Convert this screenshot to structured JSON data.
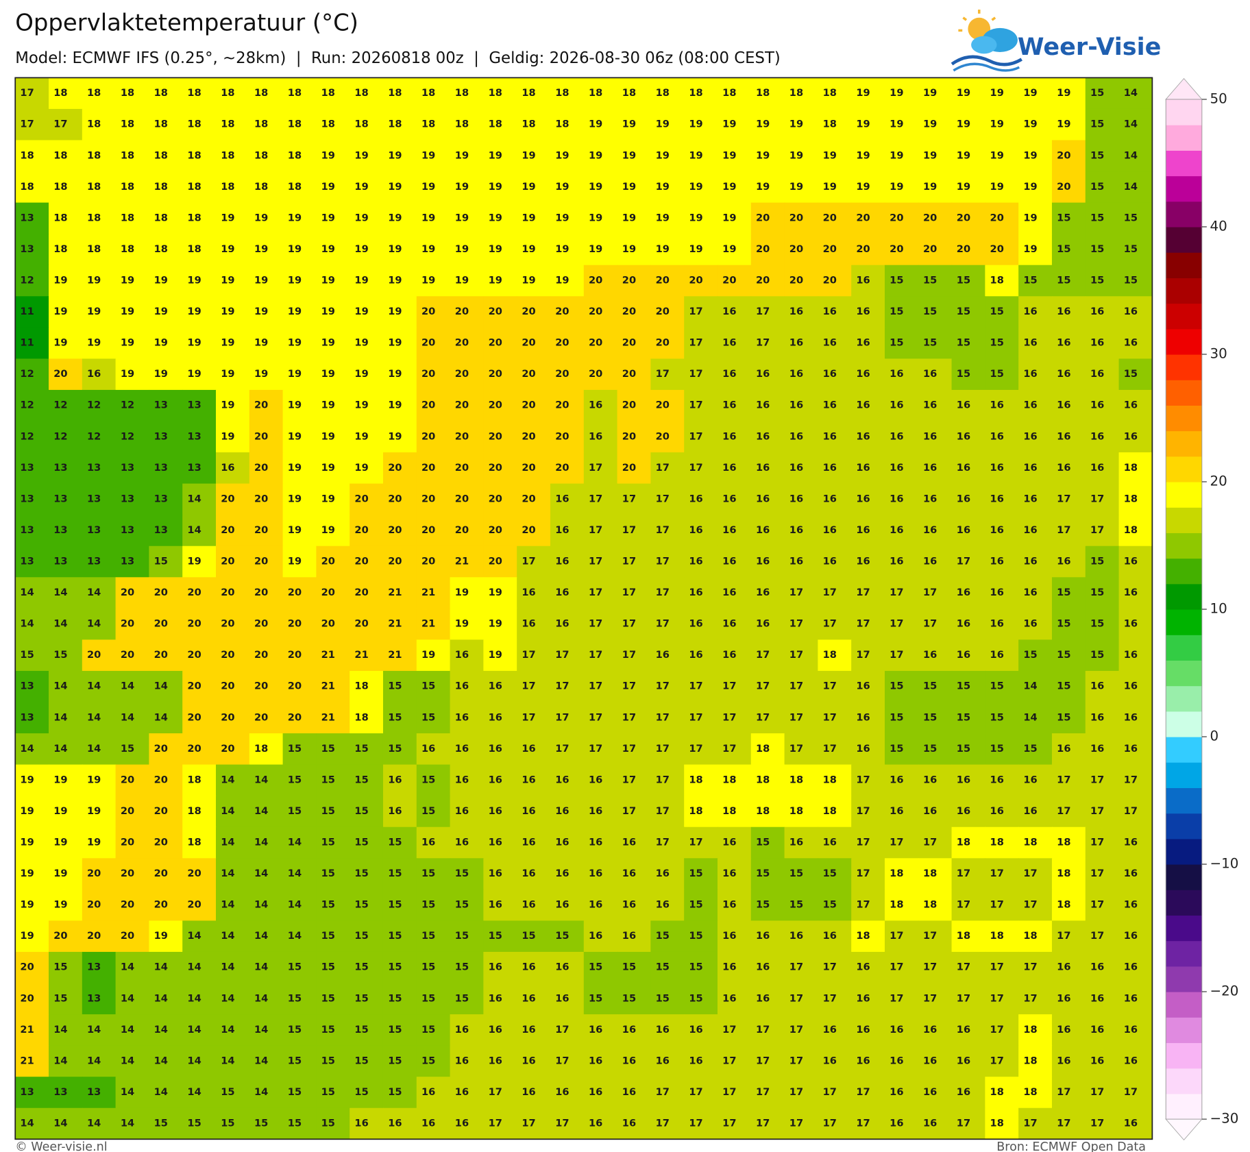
{
  "header": {
    "title": "Oppervlaktetemperatuur (°C)",
    "subtitle": "Model: ECMWF IFS (0.25°, ~28km)  |  Run: 20260818 00z  |  Geldig: 2026-08-30 06z (08:00 CEST)",
    "logo": "Weer-Visie"
  },
  "map": {
    "type": "grid",
    "rows": [
      [
        17,
        18,
        18,
        18,
        18,
        18,
        18,
        18,
        18,
        18,
        18,
        18,
        18,
        18,
        18,
        18,
        18,
        18,
        18,
        18,
        18,
        18,
        18,
        18,
        18,
        19,
        19,
        19,
        19,
        19,
        19,
        19,
        15,
        14
      ],
      [
        17,
        17,
        18,
        18,
        18,
        18,
        18,
        18,
        18,
        18,
        18,
        18,
        18,
        18,
        18,
        18,
        18,
        19,
        19,
        19,
        19,
        19,
        19,
        19,
        18,
        19,
        19,
        19,
        19,
        19,
        19,
        19,
        15,
        14
      ],
      [
        18,
        18,
        18,
        18,
        18,
        18,
        18,
        18,
        18,
        19,
        19,
        19,
        19,
        19,
        19,
        19,
        19,
        19,
        19,
        19,
        19,
        19,
        19,
        19,
        19,
        19,
        19,
        19,
        19,
        19,
        19,
        20,
        15,
        14
      ],
      [
        18,
        18,
        18,
        18,
        18,
        18,
        18,
        18,
        18,
        19,
        19,
        19,
        19,
        19,
        19,
        19,
        19,
        19,
        19,
        19,
        19,
        19,
        19,
        19,
        19,
        19,
        19,
        19,
        19,
        19,
        19,
        20,
        15,
        14
      ],
      [
        13,
        18,
        18,
        18,
        18,
        18,
        19,
        19,
        19,
        19,
        19,
        19,
        19,
        19,
        19,
        19,
        19,
        19,
        19,
        19,
        19,
        19,
        20,
        20,
        20,
        20,
        20,
        20,
        20,
        20,
        19,
        15,
        15,
        15
      ],
      [
        13,
        18,
        18,
        18,
        18,
        18,
        19,
        19,
        19,
        19,
        19,
        19,
        19,
        19,
        19,
        19,
        19,
        19,
        19,
        19,
        19,
        19,
        20,
        20,
        20,
        20,
        20,
        20,
        20,
        20,
        19,
        15,
        15,
        15
      ],
      [
        12,
        19,
        19,
        19,
        19,
        19,
        19,
        19,
        19,
        19,
        19,
        19,
        19,
        19,
        19,
        19,
        19,
        20,
        20,
        20,
        20,
        20,
        20,
        20,
        20,
        16,
        15,
        15,
        15,
        18,
        15,
        15,
        15,
        15
      ],
      [
        11,
        19,
        19,
        19,
        19,
        19,
        19,
        19,
        19,
        19,
        19,
        19,
        20,
        20,
        20,
        20,
        20,
        20,
        20,
        20,
        17,
        16,
        17,
        16,
        16,
        16,
        15,
        15,
        15,
        15,
        16,
        16,
        16,
        16
      ],
      [
        11,
        19,
        19,
        19,
        19,
        19,
        19,
        19,
        19,
        19,
        19,
        19,
        20,
        20,
        20,
        20,
        20,
        20,
        20,
        20,
        17,
        16,
        17,
        16,
        16,
        16,
        15,
        15,
        15,
        15,
        16,
        16,
        16,
        16
      ],
      [
        12,
        20,
        16,
        19,
        19,
        19,
        19,
        19,
        19,
        19,
        19,
        19,
        20,
        20,
        20,
        20,
        20,
        20,
        20,
        17,
        17,
        16,
        16,
        16,
        16,
        16,
        16,
        16,
        15,
        15,
        16,
        16,
        16,
        15
      ],
      [
        12,
        12,
        12,
        12,
        13,
        13,
        19,
        20,
        19,
        19,
        19,
        19,
        20,
        20,
        20,
        20,
        20,
        16,
        20,
        20,
        17,
        16,
        16,
        16,
        16,
        16,
        16,
        16,
        16,
        16,
        16,
        16,
        16,
        16
      ],
      [
        12,
        12,
        12,
        12,
        13,
        13,
        19,
        20,
        19,
        19,
        19,
        19,
        20,
        20,
        20,
        20,
        20,
        16,
        20,
        20,
        17,
        16,
        16,
        16,
        16,
        16,
        16,
        16,
        16,
        16,
        16,
        16,
        16,
        16
      ],
      [
        13,
        13,
        13,
        13,
        13,
        13,
        16,
        20,
        19,
        19,
        19,
        20,
        20,
        20,
        20,
        20,
        20,
        17,
        20,
        17,
        17,
        16,
        16,
        16,
        16,
        16,
        16,
        16,
        16,
        16,
        16,
        16,
        16,
        18
      ],
      [
        13,
        13,
        13,
        13,
        13,
        14,
        20,
        20,
        19,
        19,
        20,
        20,
        20,
        20,
        20,
        20,
        16,
        17,
        17,
        17,
        16,
        16,
        16,
        16,
        16,
        16,
        16,
        16,
        16,
        16,
        16,
        17,
        17,
        18
      ],
      [
        13,
        13,
        13,
        13,
        13,
        14,
        20,
        20,
        19,
        19,
        20,
        20,
        20,
        20,
        20,
        20,
        16,
        17,
        17,
        17,
        16,
        16,
        16,
        16,
        16,
        16,
        16,
        16,
        16,
        16,
        16,
        17,
        17,
        18
      ],
      [
        13,
        13,
        13,
        13,
        15,
        19,
        20,
        20,
        19,
        20,
        20,
        20,
        20,
        21,
        20,
        17,
        16,
        17,
        17,
        17,
        16,
        16,
        16,
        16,
        16,
        16,
        16,
        16,
        17,
        16,
        16,
        16,
        15,
        16
      ],
      [
        14,
        14,
        14,
        20,
        20,
        20,
        20,
        20,
        20,
        20,
        20,
        21,
        21,
        19,
        19,
        16,
        16,
        17,
        17,
        17,
        16,
        16,
        16,
        17,
        17,
        17,
        17,
        17,
        16,
        16,
        16,
        15,
        15,
        16
      ],
      [
        14,
        14,
        14,
        20,
        20,
        20,
        20,
        20,
        20,
        20,
        20,
        21,
        21,
        19,
        19,
        16,
        16,
        17,
        17,
        17,
        16,
        16,
        16,
        17,
        17,
        17,
        17,
        17,
        16,
        16,
        16,
        15,
        15,
        16
      ],
      [
        15,
        15,
        20,
        20,
        20,
        20,
        20,
        20,
        20,
        21,
        21,
        21,
        19,
        16,
        19,
        17,
        17,
        17,
        17,
        16,
        16,
        16,
        17,
        17,
        18,
        17,
        17,
        16,
        16,
        16,
        15,
        15,
        15,
        16
      ],
      [
        13,
        14,
        14,
        14,
        14,
        20,
        20,
        20,
        20,
        21,
        18,
        15,
        15,
        16,
        16,
        17,
        17,
        17,
        17,
        17,
        17,
        17,
        17,
        17,
        17,
        16,
        15,
        15,
        15,
        15,
        14,
        15,
        16,
        16
      ],
      [
        13,
        14,
        14,
        14,
        14,
        20,
        20,
        20,
        20,
        21,
        18,
        15,
        15,
        16,
        16,
        17,
        17,
        17,
        17,
        17,
        17,
        17,
        17,
        17,
        17,
        16,
        15,
        15,
        15,
        15,
        14,
        15,
        16,
        16
      ],
      [
        14,
        14,
        14,
        15,
        20,
        20,
        20,
        18,
        15,
        15,
        15,
        15,
        16,
        16,
        16,
        16,
        17,
        17,
        17,
        17,
        17,
        17,
        18,
        17,
        17,
        16,
        15,
        15,
        15,
        15,
        15,
        16,
        16,
        16
      ],
      [
        19,
        19,
        19,
        20,
        20,
        18,
        14,
        14,
        15,
        15,
        15,
        16,
        15,
        16,
        16,
        16,
        16,
        16,
        17,
        17,
        18,
        18,
        18,
        18,
        18,
        17,
        16,
        16,
        16,
        16,
        16,
        17,
        17,
        17
      ],
      [
        19,
        19,
        19,
        20,
        20,
        18,
        14,
        14,
        15,
        15,
        15,
        16,
        15,
        16,
        16,
        16,
        16,
        16,
        17,
        17,
        18,
        18,
        18,
        18,
        18,
        17,
        16,
        16,
        16,
        16,
        16,
        17,
        17,
        17
      ],
      [
        19,
        19,
        19,
        20,
        20,
        18,
        14,
        14,
        14,
        15,
        15,
        15,
        16,
        16,
        16,
        16,
        16,
        16,
        16,
        17,
        17,
        16,
        15,
        16,
        16,
        17,
        17,
        17,
        18,
        18,
        18,
        18,
        17,
        16
      ],
      [
        19,
        19,
        20,
        20,
        20,
        20,
        14,
        14,
        14,
        15,
        15,
        15,
        15,
        15,
        16,
        16,
        16,
        16,
        16,
        16,
        15,
        16,
        15,
        15,
        15,
        17,
        18,
        18,
        17,
        17,
        17,
        18,
        17,
        16
      ],
      [
        19,
        19,
        20,
        20,
        20,
        20,
        14,
        14,
        14,
        15,
        15,
        15,
        15,
        15,
        16,
        16,
        16,
        16,
        16,
        16,
        15,
        16,
        15,
        15,
        15,
        17,
        18,
        18,
        17,
        17,
        17,
        18,
        17,
        16
      ],
      [
        19,
        20,
        20,
        20,
        19,
        14,
        14,
        14,
        14,
        15,
        15,
        15,
        15,
        15,
        15,
        15,
        15,
        16,
        16,
        15,
        15,
        16,
        16,
        16,
        16,
        18,
        17,
        17,
        18,
        18,
        18,
        17,
        17,
        16
      ],
      [
        20,
        15,
        13,
        14,
        14,
        14,
        14,
        14,
        15,
        15,
        15,
        15,
        15,
        15,
        16,
        16,
        16,
        15,
        15,
        15,
        15,
        16,
        16,
        17,
        17,
        16,
        17,
        17,
        17,
        17,
        17,
        16,
        16,
        16
      ],
      [
        20,
        15,
        13,
        14,
        14,
        14,
        14,
        14,
        15,
        15,
        15,
        15,
        15,
        15,
        16,
        16,
        16,
        15,
        15,
        15,
        15,
        16,
        16,
        17,
        17,
        16,
        17,
        17,
        17,
        17,
        17,
        16,
        16,
        16
      ],
      [
        21,
        14,
        14,
        14,
        14,
        14,
        14,
        14,
        15,
        15,
        15,
        15,
        15,
        16,
        16,
        16,
        17,
        16,
        16,
        16,
        16,
        17,
        17,
        17,
        16,
        16,
        16,
        16,
        16,
        17,
        18,
        16,
        16,
        16
      ],
      [
        21,
        14,
        14,
        14,
        14,
        14,
        14,
        14,
        15,
        15,
        15,
        15,
        15,
        16,
        16,
        16,
        17,
        16,
        16,
        16,
        16,
        17,
        17,
        17,
        16,
        16,
        16,
        16,
        16,
        17,
        18,
        16,
        16,
        16
      ],
      [
        13,
        13,
        13,
        14,
        14,
        14,
        15,
        14,
        15,
        15,
        15,
        15,
        16,
        16,
        17,
        16,
        16,
        16,
        16,
        17,
        17,
        17,
        17,
        17,
        17,
        17,
        16,
        16,
        16,
        18,
        18,
        17,
        17,
        17
      ],
      [
        14,
        14,
        14,
        14,
        15,
        15,
        15,
        15,
        15,
        15,
        16,
        16,
        16,
        16,
        17,
        17,
        17,
        16,
        16,
        17,
        17,
        17,
        17,
        17,
        17,
        17,
        16,
        16,
        17,
        18,
        17,
        17,
        17,
        16
      ]
    ],
    "colorbar": {
      "lim": [
        -30,
        50
      ],
      "ticks": [
        50,
        40,
        30,
        20,
        10,
        0,
        {
          "value": -10,
          "label": "−10"
        },
        {
          "value": -20,
          "label": "−20"
        },
        {
          "value": -30,
          "label": "−30"
        }
      ],
      "colors": [
        "#fff0fe",
        "#fcd8fa",
        "#f8b4f4",
        "#e08ae0",
        "#c45ec6",
        "#8f3aae",
        "#6e23a3",
        "#4a0a8a",
        "#2b0a5a",
        "#150f45",
        "#071b80",
        "#0a3ea8",
        "#0a6cc8",
        "#00a6e6",
        "#33ccff",
        "#ccffe6",
        "#99eeaa",
        "#66dd66",
        "#33cc44",
        "#00b300",
        "#009900",
        "#44b000",
        "#8fc800",
        "#c8d800",
        "#ffff00",
        "#ffd700",
        "#ffb400",
        "#ff8c00",
        "#ff6000",
        "#ff3300",
        "#ee0000",
        "#cc0000",
        "#aa0000",
        "#880000",
        "#550033",
        "#880066",
        "#bb0099",
        "#ee44cc",
        "#ffaadd",
        "#ffd6f0"
      ]
    }
  },
  "footer": {
    "left": "© Weer-visie.nl",
    "right": "Bron: ECMWF Open Data"
  }
}
